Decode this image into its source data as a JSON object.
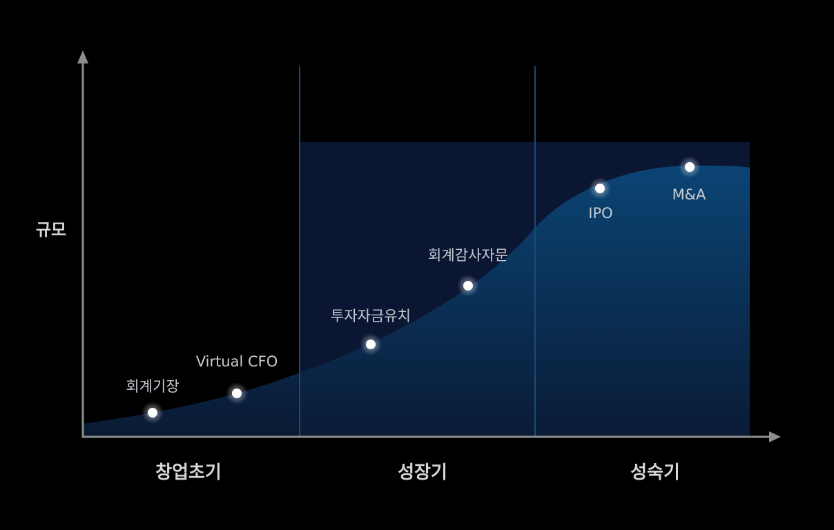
{
  "diagram": {
    "y_axis_label": "규모",
    "stages": [
      {
        "label": "창업초기"
      },
      {
        "label": "성장기"
      },
      {
        "label": "성숙기"
      }
    ],
    "milestones": [
      {
        "label": "회계기장"
      },
      {
        "label": "Virtual CFO"
      },
      {
        "label": "투자자금유치"
      },
      {
        "label": "회계감사자문"
      },
      {
        "label": "IPO"
      },
      {
        "label": "M&A"
      }
    ],
    "colors": {
      "background": "#000000",
      "axis": "#8e8e8e",
      "stage_panel": "#0b1633",
      "stage_divider": "#1a4a78",
      "curve_fill_top": "#0b4778",
      "curve_fill_bottom": "#0a1b36",
      "point": "#ffffff",
      "label_text": "#c8ccd2",
      "axis_text": "#d6d6d6"
    }
  }
}
